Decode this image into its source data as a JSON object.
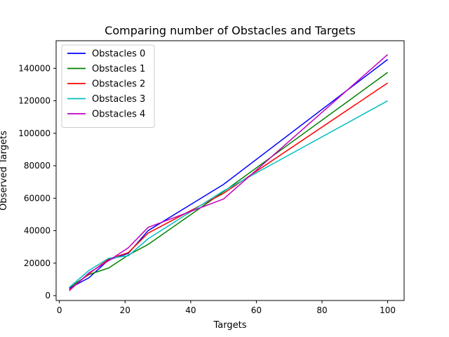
{
  "chart_data": {
    "type": "line",
    "title": "Comparing number of Obstacles and Targets",
    "xlabel": "Targets",
    "ylabel": "Observed Targets",
    "xlim": [
      -1,
      105
    ],
    "ylim": [
      -3000,
      157000
    ],
    "xticks": [
      0,
      20,
      40,
      60,
      80,
      100
    ],
    "yticks": [
      0,
      20000,
      40000,
      60000,
      80000,
      100000,
      120000,
      140000
    ],
    "x": [
      3,
      9,
      15,
      21,
      27,
      50,
      100
    ],
    "grid": false,
    "legend_position": "top-left",
    "series": [
      {
        "name": "Obstacles 0",
        "color": "#0000ff",
        "values": [
          4500,
          11000,
          22000,
          26000,
          40000,
          68500,
          145500
        ]
      },
      {
        "name": "Obstacles 1",
        "color": "#008000",
        "values": [
          5000,
          13000,
          17000,
          25000,
          31500,
          64000,
          137500
        ]
      },
      {
        "name": "Obstacles 2",
        "color": "#ff0000",
        "values": [
          3500,
          13500,
          22500,
          26500,
          38500,
          63000,
          131000
        ]
      },
      {
        "name": "Obstacles 3",
        "color": "#00bfbf",
        "values": [
          5000,
          15500,
          23000,
          24500,
          35000,
          64500,
          120000
        ]
      },
      {
        "name": "Obstacles 4",
        "color": "#bf00bf",
        "values": [
          3000,
          14000,
          21500,
          29500,
          42000,
          59500,
          148500
        ]
      }
    ]
  }
}
